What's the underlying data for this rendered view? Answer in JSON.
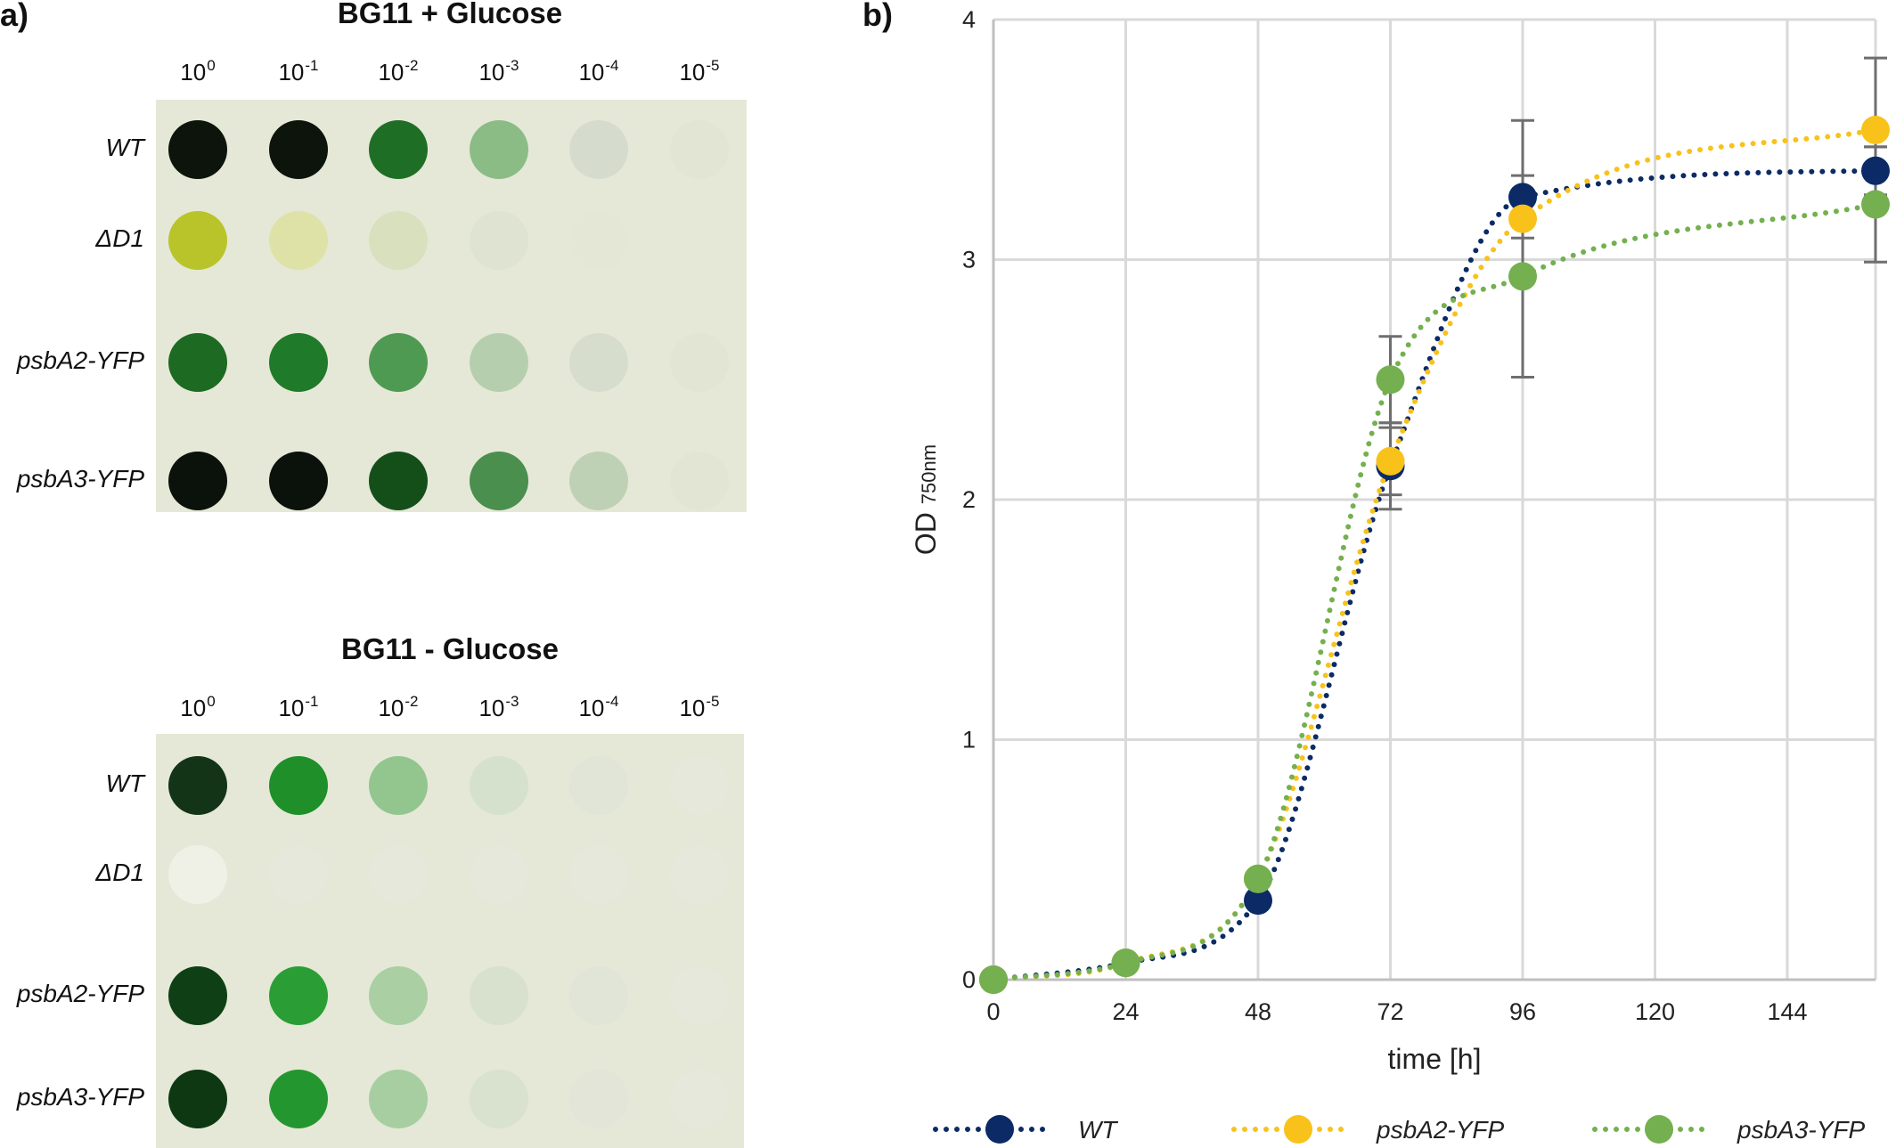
{
  "panel_a": {
    "letter": "a)",
    "dilutions": [
      {
        "base": "10",
        "exp": "0"
      },
      {
        "base": "10",
        "exp": "-1"
      },
      {
        "base": "10",
        "exp": "-2"
      },
      {
        "base": "10",
        "exp": "-3"
      },
      {
        "base": "10",
        "exp": "-4"
      },
      {
        "base": "10",
        "exp": "-5"
      }
    ],
    "plates": [
      {
        "title": "BG11 + Glucose",
        "strains": [
          "WT",
          "ΔD1",
          "psbA2-YFP",
          "psbA3-YFP"
        ],
        "spot_colors": [
          [
            "#0c140b",
            "#0d140c",
            "#1f6e26",
            "#8cbc86",
            "#d6dccd",
            "#e2e5d4"
          ],
          [
            "#b8c42a",
            "#dfe2a6",
            "#d8e0bd",
            "#dfe3d1",
            "#e4e7d5",
            "#e5e8d6"
          ],
          [
            "#1d6a22",
            "#1f7a2a",
            "#4e9a52",
            "#b5cfae",
            "#d7ddcd",
            "#e2e5d4"
          ],
          [
            "#0b120b",
            "#0b120b",
            "#144f1a",
            "#4a8f4e",
            "#bfd1b4",
            "#e2e5d4"
          ]
        ]
      },
      {
        "title": "BG11 - Glucose",
        "strains": [
          "WT",
          "ΔD1",
          "psbA2-YFP",
          "psbA3-YFP"
        ],
        "spot_colors": [
          [
            "#143417",
            "#1f8f2a",
            "#93c58f",
            "#d6e1cd",
            "#e1e5d7",
            "#e5e8da"
          ],
          [
            "#eff1e6",
            "#e5e8da",
            "#e5e8da",
            "#e5e8da",
            "#e5e8da",
            "#e5e8da"
          ],
          [
            "#0f4015",
            "#2a9e35",
            "#a9cfa2",
            "#d8e1ce",
            "#e1e5d7",
            "#e5e8da"
          ],
          [
            "#0d3812",
            "#24962f",
            "#a7cea0",
            "#d9e1cf",
            "#e2e5d7",
            "#e5e8da"
          ]
        ]
      }
    ]
  },
  "panel_b": {
    "letter": "b)"
  },
  "chart_data": {
    "type": "line",
    "xlabel": "time [h]",
    "ylabel": "OD",
    "ylabel_sub": "750nm",
    "x_ticks": [
      0,
      24,
      48,
      72,
      96,
      120,
      144
    ],
    "y_ticks": [
      0,
      1,
      2,
      3,
      4
    ],
    "xlim": [
      0,
      160
    ],
    "ylim": [
      0,
      4
    ],
    "grid": true,
    "legend_position": "bottom",
    "x": [
      0,
      24,
      48,
      72,
      96,
      160
    ],
    "series": [
      {
        "name": "WT",
        "color": "#0b2a66",
        "values": [
          0.0,
          0.07,
          0.33,
          2.14,
          3.26,
          3.37
        ],
        "error": [
          0.0,
          0.0,
          0.0,
          0.18,
          0.32,
          0.1
        ]
      },
      {
        "name": "psbA2-YFP",
        "color": "#f8c21b",
        "values": [
          0.0,
          0.07,
          0.42,
          2.16,
          3.17,
          3.54
        ],
        "error": [
          0.0,
          0.0,
          0.0,
          0.14,
          0.08,
          0.3
        ]
      },
      {
        "name": "psbA3-YFP",
        "color": "#74b04f",
        "values": [
          0.0,
          0.07,
          0.42,
          2.5,
          2.93,
          3.23
        ],
        "error": [
          0.0,
          0.0,
          0.0,
          0.18,
          0.42,
          0.24
        ]
      }
    ]
  }
}
